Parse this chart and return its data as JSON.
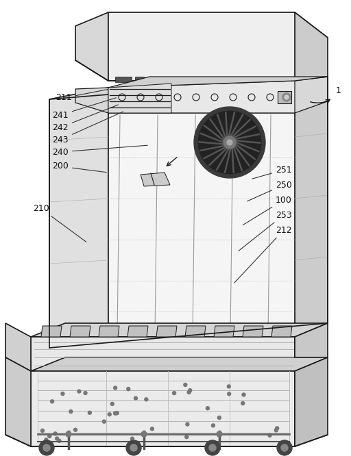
{
  "bg_color": "#ffffff",
  "line_color": "#1a1a1a",
  "fig_width": 5.12,
  "fig_height": 6.66,
  "dpi": 100,
  "right_labels": [
    [
      "1",
      490,
      133,
      450,
      148
    ],
    [
      "251",
      402,
      248,
      365,
      262
    ],
    [
      "250",
      402,
      270,
      358,
      295
    ],
    [
      "100",
      402,
      292,
      352,
      330
    ],
    [
      "253",
      402,
      314,
      346,
      368
    ],
    [
      "212",
      402,
      336,
      340,
      415
    ]
  ],
  "left_labels": [
    [
      "211",
      105,
      143,
      160,
      130
    ],
    [
      "241",
      100,
      168,
      172,
      142
    ],
    [
      "242",
      100,
      186,
      175,
      152
    ],
    [
      "243",
      100,
      204,
      182,
      162
    ],
    [
      "240",
      100,
      222,
      218,
      212
    ],
    [
      "200",
      100,
      243,
      158,
      252
    ],
    [
      "210",
      72,
      305,
      128,
      355
    ]
  ]
}
